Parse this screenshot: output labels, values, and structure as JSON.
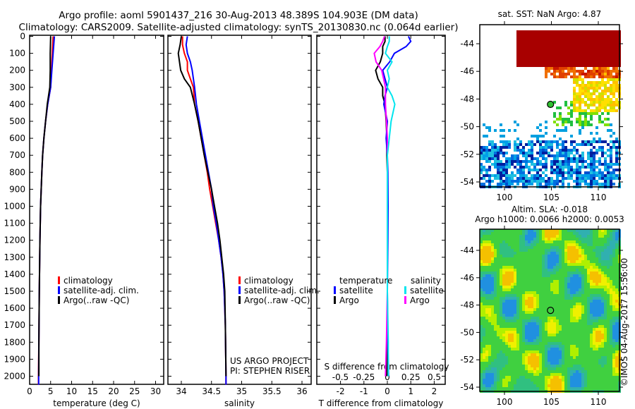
{
  "title_line1": "Argo profile: aoml 5901437_216 30-Aug-2013 48.389S 104.903E (DM data)",
  "title_line2": "Climatology: CARS2009. Satellite-adjusted climatology: synTS_20130830.nc (0.064d earlier)",
  "colors": {
    "climatology": "#ff0000",
    "satellite": "#0000ff",
    "argo": "#000000",
    "sal_satellite": "#00e5ee",
    "sal_argo": "#ff00ff"
  },
  "chart_data": [
    {
      "type": "line",
      "xlabel": "temperature (deg C)",
      "ylabel": "",
      "xlim": [
        -0.5,
        31.5
      ],
      "ylim": [
        2060,
        0
      ],
      "xticks": [
        "0",
        "5",
        "10",
        "15",
        "20",
        "25",
        "30"
      ],
      "xtick_values": [
        0,
        5,
        10,
        15,
        20,
        25,
        30
      ],
      "yticks": [
        "0",
        "100",
        "200",
        "300",
        "400",
        "500",
        "600",
        "700",
        "800",
        "900",
        "1000",
        "1100",
        "1200",
        "1300",
        "1400",
        "1500",
        "1600",
        "1700",
        "1800",
        "1900",
        "2000"
      ],
      "legend": [
        "climatology",
        "satellite-adj. clim.",
        "Argo(..raw -QC)"
      ],
      "depth": [
        0,
        100,
        200,
        300,
        400,
        500,
        600,
        700,
        800,
        1000,
        1200,
        1500,
        1800,
        2000,
        2050
      ],
      "series": [
        {
          "name": "climatology",
          "values": [
            5.6,
            5.4,
            5.2,
            5.0,
            4.3,
            3.8,
            3.4,
            3.1,
            2.9,
            2.6,
            2.45,
            2.3,
            2.2,
            2.1,
            2.1
          ]
        },
        {
          "name": "satellite-adj. clim.",
          "values": [
            5.9,
            5.6,
            5.3,
            5.0,
            4.3,
            3.8,
            3.4,
            3.1,
            2.9,
            2.6,
            2.45,
            2.3,
            2.2,
            2.15,
            2.15
          ]
        },
        {
          "name": "Argo(..raw -QC)",
          "values": [
            5.0,
            4.9,
            4.9,
            4.8,
            4.2,
            3.8,
            3.4,
            3.1,
            2.9,
            2.6,
            2.45,
            2.3,
            2.2,
            2.2,
            null
          ]
        }
      ]
    },
    {
      "type": "line",
      "xlabel": "salinity",
      "xlim": [
        33.78,
        36.15
      ],
      "ylim": [
        2060,
        0
      ],
      "xticks": [
        "34",
        "34.5",
        "35",
        "35.5",
        "36"
      ],
      "xtick_values": [
        34,
        34.5,
        35,
        35.5,
        36
      ],
      "legend": [
        "climatology",
        "satellite-adj. clim.",
        " Argo(..raw -QC)"
      ],
      "annotation": [
        "US ARGO PROJECT",
        "PI: STEPHEN RISER"
      ],
      "depth": [
        0,
        50,
        100,
        150,
        200,
        250,
        300,
        400,
        500,
        600,
        700,
        800,
        900,
        1000,
        1100,
        1200,
        1300,
        1400,
        1500,
        1700,
        2000,
        2050
      ],
      "series": [
        {
          "name": "climatology",
          "values": [
            34.02,
            34.02,
            34.05,
            34.1,
            34.1,
            34.15,
            34.2,
            34.22,
            34.28,
            34.33,
            34.38,
            34.43,
            34.47,
            34.52,
            34.57,
            34.62,
            34.66,
            34.69,
            34.71,
            34.73,
            34.74,
            34.74
          ]
        },
        {
          "name": "satellite-adj. clim.",
          "values": [
            34.1,
            34.08,
            34.1,
            34.15,
            34.18,
            34.2,
            34.22,
            34.25,
            34.3,
            34.35,
            34.4,
            34.45,
            34.5,
            34.53,
            34.58,
            34.62,
            34.66,
            34.69,
            34.71,
            34.73,
            34.74,
            34.74
          ]
        },
        {
          "name": "Argo",
          "values": [
            34.0,
            33.98,
            33.95,
            33.97,
            33.99,
            34.05,
            34.15,
            34.22,
            34.28,
            34.33,
            34.38,
            34.44,
            34.5,
            34.55,
            34.6,
            34.64,
            34.67,
            34.7,
            34.72,
            34.73,
            34.74,
            null
          ]
        }
      ]
    },
    {
      "type": "line",
      "xlabel": "T difference from climatology",
      "xlabel2": "S difference from climatology",
      "xlim": [
        -3.0,
        3.0
      ],
      "xlim2": [
        -0.75,
        0.75
      ],
      "ylim": [
        2060,
        0
      ],
      "xticks": [
        "-2",
        "-1",
        "0",
        "1",
        "2"
      ],
      "xtick_values": [
        -2,
        -1,
        0,
        1,
        2
      ],
      "xticks2": [
        "-0.5",
        "-0.25",
        "0",
        "0.25",
        "0.5"
      ],
      "xtick_values2": [
        -0.5,
        -0.25,
        0,
        0.25,
        0.5
      ],
      "legend_titles": [
        "temperature",
        "salinity"
      ],
      "legend": [
        "satellite",
        "Argo",
        "satellite",
        "Argo"
      ],
      "depth": [
        0,
        30,
        60,
        100,
        150,
        200,
        250,
        300,
        350,
        400,
        500,
        600,
        700,
        800,
        1000,
        1200,
        1500,
        1800,
        2000
      ],
      "series": [
        {
          "name": "T satellite",
          "values": [
            0.9,
            1.0,
            0.8,
            0.3,
            0.1,
            -0.2,
            -0.1,
            0.0,
            -0.1,
            -0.15,
            0.0,
            -0.05,
            0.0,
            0.02,
            0.03,
            0.02,
            0.0,
            0.02,
            0.05
          ]
        },
        {
          "name": "T Argo",
          "values": [
            -0.1,
            -0.1,
            -0.2,
            -0.2,
            -0.3,
            -0.5,
            -0.4,
            -0.2,
            -0.2,
            -0.1,
            -0.05,
            -0.02,
            -0.02,
            0.0,
            0.0,
            0.0,
            0.0,
            0.0,
            -0.02
          ]
        },
        {
          "name": "S satellite",
          "values": [
            0.02,
            0.02,
            0.0,
            -0.02,
            0.05,
            0.0,
            0.02,
            0.0,
            0.05,
            0.08,
            0.04,
            0.02,
            0.0,
            0.0,
            0.0,
            0.0,
            0.0,
            0.01,
            0.01
          ]
        },
        {
          "name": "S Argo",
          "values": [
            -0.03,
            -0.05,
            -0.08,
            -0.14,
            -0.12,
            -0.06,
            -0.04,
            -0.02,
            -0.02,
            -0.02,
            -0.01,
            0.0,
            0.0,
            0.0,
            0.0,
            0.0,
            0.0,
            -0.01,
            -0.02
          ]
        }
      ]
    },
    {
      "type": "heatmap",
      "title": "sat. SST: NaN Argo: 4.87",
      "xticks": [
        "100",
        "105",
        "110"
      ],
      "xtick_values": [
        100,
        105,
        110
      ],
      "yticks": [
        "-44",
        "-46",
        "-48",
        "-50",
        "-52",
        "-54"
      ],
      "ytick_values": [
        -44,
        -46,
        -48,
        -50,
        -52,
        -54
      ],
      "xlim": [
        97.4,
        112.6
      ],
      "ylim": [
        -54.4,
        -42.6
      ],
      "marker": {
        "lon": 104.903,
        "lat": -48.389
      }
    },
    {
      "type": "heatmap",
      "title": "Altim. SLA: -0.018",
      "subtitle": "Argo h1000: 0.0066 h2000: 0.0053",
      "xticks": [
        "100",
        "105",
        "110"
      ],
      "xtick_values": [
        100,
        105,
        110
      ],
      "yticks": [
        "-44",
        "-46",
        "-48",
        "-50",
        "-52",
        "-54"
      ],
      "ytick_values": [
        -44,
        -46,
        -48,
        -50,
        -52,
        -54
      ],
      "xlim": [
        97.4,
        112.6
      ],
      "ylim": [
        -54.4,
        -42.6
      ],
      "marker": {
        "lon": 104.903,
        "lat": -48.389
      }
    }
  ],
  "credit": "©IMOS 04-Aug-2017 15:56:00"
}
